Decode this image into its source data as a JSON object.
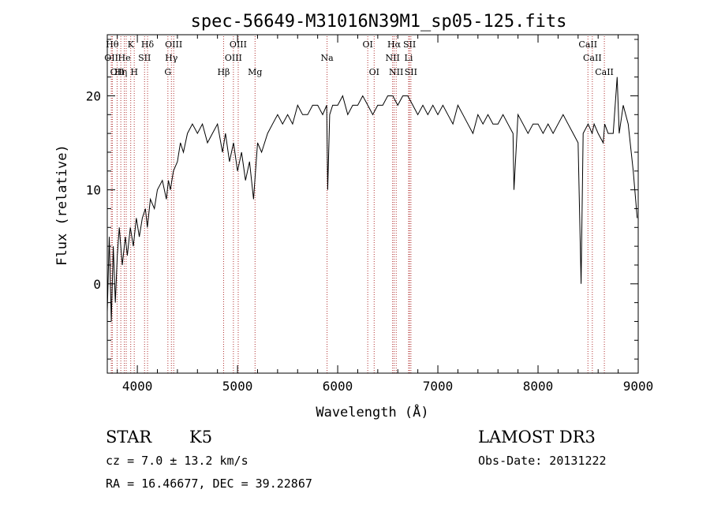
{
  "chart_data": {
    "type": "line",
    "title": "spec-56649-M31016N39M1_sp05-125.fits",
    "xlabel": "Wavelength (Å)",
    "ylabel": "Flux (relative)",
    "xlim": [
      3700,
      9000
    ],
    "ylim": [
      -9.5,
      26.5
    ],
    "x_ticks": [
      4000,
      5000,
      6000,
      7000,
      8000,
      9000
    ],
    "y_ticks": [
      0,
      10,
      20
    ],
    "grid": false,
    "series": [
      {
        "color": "#000000",
        "x": [
          3700,
          3720,
          3740,
          3760,
          3780,
          3800,
          3820,
          3850,
          3880,
          3900,
          3930,
          3960,
          3990,
          4020,
          4050,
          4080,
          4100,
          4130,
          4170,
          4200,
          4250,
          4290,
          4310,
          4330,
          4360,
          4400,
          4430,
          4460,
          4500,
          4550,
          4600,
          4650,
          4700,
          4750,
          4800,
          4850,
          4880,
          4920,
          4960,
          5000,
          5040,
          5080,
          5120,
          5160,
          5180,
          5200,
          5240,
          5300,
          5350,
          5400,
          5450,
          5500,
          5550,
          5600,
          5650,
          5700,
          5750,
          5800,
          5850,
          5890,
          5900,
          5920,
          5950,
          6000,
          6050,
          6100,
          6150,
          6200,
          6250,
          6300,
          6350,
          6400,
          6450,
          6500,
          6550,
          6600,
          6650,
          6700,
          6750,
          6800,
          6850,
          6900,
          6950,
          7000,
          7050,
          7100,
          7150,
          7200,
          7250,
          7300,
          7350,
          7400,
          7450,
          7500,
          7550,
          7600,
          7650,
          7700,
          7750,
          7760,
          7800,
          7850,
          7900,
          7950,
          8000,
          8050,
          8100,
          8150,
          8200,
          8250,
          8300,
          8350,
          8400,
          8430,
          8450,
          8500,
          8540,
          8560,
          8600,
          8650,
          8665,
          8700,
          8750,
          8790,
          8810,
          8850,
          8900,
          8950,
          8990
        ],
        "y": [
          -3,
          5,
          -4,
          4,
          -2,
          3,
          6,
          2,
          5,
          3,
          6,
          4,
          7,
          5,
          7,
          8,
          6,
          9,
          8,
          10,
          11,
          9,
          11,
          10,
          12,
          13,
          15,
          14,
          16,
          17,
          16,
          17,
          15,
          16,
          17,
          14,
          16,
          13,
          15,
          12,
          14,
          11,
          13,
          9,
          12,
          15,
          14,
          16,
          17,
          18,
          17,
          18,
          17,
          19,
          18,
          18,
          19,
          19,
          18,
          19,
          10,
          18,
          19,
          19,
          20,
          18,
          19,
          19,
          20,
          19,
          18,
          19,
          19,
          20,
          20,
          19,
          20,
          20,
          19,
          18,
          19,
          18,
          19,
          18,
          19,
          18,
          17,
          19,
          18,
          17,
          16,
          18,
          17,
          18,
          17,
          17,
          18,
          17,
          16,
          10,
          18,
          17,
          16,
          17,
          17,
          16,
          17,
          16,
          17,
          18,
          17,
          16,
          15,
          0,
          16,
          17,
          16,
          17,
          16,
          15,
          17,
          16,
          16,
          22,
          16,
          19,
          17,
          12,
          7
        ]
      }
    ],
    "spectral_lines": [
      {
        "x": 3740,
        "label": "OII",
        "row": 2
      },
      {
        "x": 3750,
        "label": "Hθ",
        "row": 1
      },
      {
        "x": 3798,
        "label": "OII",
        "row": 3
      },
      {
        "x": 3835,
        "label": "Hη",
        "row": 3
      },
      {
        "x": 3870,
        "label": "He",
        "row": 2
      },
      {
        "x": 3889,
        "label": "",
        "row": 1
      },
      {
        "x": 3934,
        "label": "K",
        "row": 1
      },
      {
        "x": 3969,
        "label": "H",
        "row": 3
      },
      {
        "x": 4072,
        "label": "SII",
        "row": 2
      },
      {
        "x": 4102,
        "label": "Hδ",
        "row": 1
      },
      {
        "x": 4305,
        "label": "G",
        "row": 3
      },
      {
        "x": 4340,
        "label": "Hγ",
        "row": 2
      },
      {
        "x": 4363,
        "label": "OIII",
        "row": 1
      },
      {
        "x": 4861,
        "label": "Hβ",
        "row": 3
      },
      {
        "x": 4959,
        "label": "OIII",
        "row": 2
      },
      {
        "x": 5007,
        "label": "OIII",
        "row": 1
      },
      {
        "x": 5175,
        "label": "Mg",
        "row": 3
      },
      {
        "x": 5894,
        "label": "Na",
        "row": 2
      },
      {
        "x": 6300,
        "label": "OI",
        "row": 1
      },
      {
        "x": 6364,
        "label": "OI",
        "row": 3
      },
      {
        "x": 6548,
        "label": "NII",
        "row": 2
      },
      {
        "x": 6563,
        "label": "Hα",
        "row": 1
      },
      {
        "x": 6584,
        "label": "NII",
        "row": 3
      },
      {
        "x": 6717,
        "label": "SII",
        "row": 1
      },
      {
        "x": 6731,
        "label": "SII",
        "row": 3
      },
      {
        "x": 6708,
        "label": "Li",
        "row": 2
      },
      {
        "x": 8498,
        "label": "CaII",
        "row": 1
      },
      {
        "x": 8542,
        "label": "CaII",
        "row": 2
      },
      {
        "x": 8662,
        "label": "CaII",
        "row": 3
      }
    ]
  },
  "info": {
    "class_label": "STAR",
    "subclass": "K5",
    "survey": "LAMOST DR3",
    "cz": "cz = 7.0 ± 13.2 km/s",
    "obs_date": "Obs-Date: 20131222",
    "radec": "RA =  16.46677, DEC =  39.22867"
  }
}
